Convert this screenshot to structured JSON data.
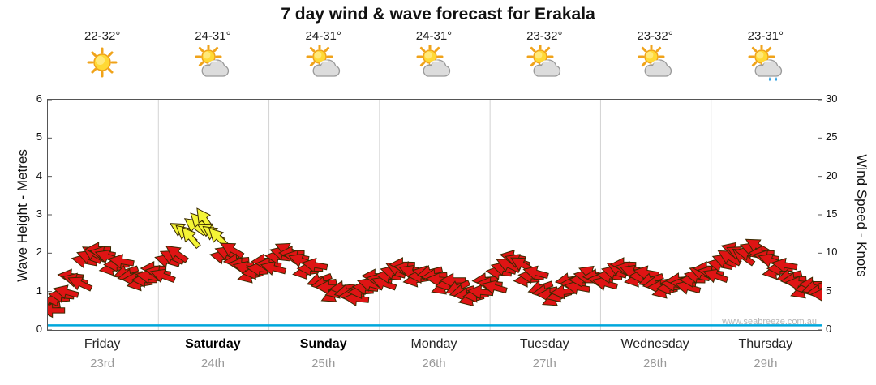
{
  "title": "7 day wind & wave forecast for Erakala",
  "watermark": "www.seabreeze.com.au",
  "left_axis": {
    "label": "Wave Height - Metres",
    "ticks": [
      0,
      1,
      2,
      3,
      4,
      5,
      6
    ]
  },
  "right_axis": {
    "label": "Wind Speed - Knots",
    "ticks": [
      0,
      5,
      10,
      15,
      20,
      25,
      30
    ]
  },
  "days": [
    {
      "name": "Friday",
      "date": "23rd",
      "temp": "22-32°",
      "icon": "sunny",
      "bold": false
    },
    {
      "name": "Saturday",
      "date": "24th",
      "temp": "24-31°",
      "icon": "sun-cloud",
      "bold": true
    },
    {
      "name": "Sunday",
      "date": "25th",
      "temp": "24-31°",
      "icon": "sun-cloud",
      "bold": true
    },
    {
      "name": "Monday",
      "date": "26th",
      "temp": "24-31°",
      "icon": "sun-cloud",
      "bold": false
    },
    {
      "name": "Tuesday",
      "date": "27th",
      "temp": "23-32°",
      "icon": "sun-cloud",
      "bold": false
    },
    {
      "name": "Wednesday",
      "date": "28th",
      "temp": "23-32°",
      "icon": "sun-cloud",
      "bold": false
    },
    {
      "name": "Thursday",
      "date": "29th",
      "temp": "23-31°",
      "icon": "sun-cloud-showers",
      "bold": false
    }
  ],
  "chart_data": {
    "type": "wind-arrows",
    "x_unit": "hours-from-friday-00",
    "x_range": [
      0,
      168
    ],
    "wind_knots_range": [
      0,
      30
    ],
    "wave_metres_range": [
      0,
      6
    ],
    "grid": "vertical-day-boundaries",
    "grid_color": "#d2d2d2",
    "arrow_colors": {
      "r": "#df1414",
      "y": "#f4f436"
    },
    "arrow_outline": "#3a2a00",
    "wave_line": {
      "color": "#00a7dc",
      "points": [
        [
          0,
          0.12
        ],
        [
          168,
          0.12
        ]
      ]
    },
    "wind_point_format": [
      "t_hours",
      "knots",
      "direction_deg",
      "color(r|y)"
    ],
    "wind_points": [
      [
        0,
        3,
        170,
        "r"
      ],
      [
        3,
        4.5,
        185,
        "r"
      ],
      [
        6,
        6.5,
        195,
        "r"
      ],
      [
        9,
        9.5,
        200,
        "r"
      ],
      [
        12,
        10,
        190,
        "r"
      ],
      [
        15,
        8.5,
        180,
        "r"
      ],
      [
        18,
        7,
        170,
        "r"
      ],
      [
        21,
        6.5,
        180,
        "r"
      ],
      [
        24,
        7.5,
        190,
        "r"
      ],
      [
        27,
        9.5,
        205,
        "r"
      ],
      [
        30,
        12.5,
        220,
        "y"
      ],
      [
        33,
        14,
        225,
        "y"
      ],
      [
        36,
        12.5,
        215,
        "y"
      ],
      [
        39,
        10,
        200,
        "r"
      ],
      [
        42,
        8.5,
        185,
        "r"
      ],
      [
        45,
        7.5,
        175,
        "r"
      ],
      [
        48,
        8.5,
        185,
        "r"
      ],
      [
        51,
        10,
        195,
        "r"
      ],
      [
        54,
        9.5,
        190,
        "r"
      ],
      [
        57,
        8,
        180,
        "r"
      ],
      [
        60,
        6,
        170,
        "r"
      ],
      [
        63,
        5,
        165,
        "r"
      ],
      [
        66,
        4.5,
        175,
        "r"
      ],
      [
        69,
        5.5,
        185,
        "r"
      ],
      [
        72,
        6.5,
        190,
        "r"
      ],
      [
        75,
        7.5,
        195,
        "r"
      ],
      [
        78,
        8,
        190,
        "r"
      ],
      [
        81,
        7,
        180,
        "r"
      ],
      [
        84,
        7,
        175,
        "r"
      ],
      [
        87,
        6,
        170,
        "r"
      ],
      [
        90,
        5,
        165,
        "r"
      ],
      [
        93,
        4.5,
        175,
        "r"
      ],
      [
        96,
        6,
        185,
        "r"
      ],
      [
        99,
        8,
        195,
        "r"
      ],
      [
        102,
        9,
        200,
        "r"
      ],
      [
        105,
        7,
        185,
        "r"
      ],
      [
        108,
        5,
        170,
        "r"
      ],
      [
        111,
        4.5,
        165,
        "r"
      ],
      [
        114,
        6,
        180,
        "r"
      ],
      [
        117,
        7,
        190,
        "r"
      ],
      [
        120,
        6.5,
        185,
        "r"
      ],
      [
        123,
        7.5,
        195,
        "r"
      ],
      [
        126,
        8,
        190,
        "r"
      ],
      [
        129,
        7,
        180,
        "r"
      ],
      [
        132,
        6,
        170,
        "r"
      ],
      [
        135,
        5.5,
        175,
        "r"
      ],
      [
        138,
        6,
        185,
        "r"
      ],
      [
        141,
        7,
        190,
        "r"
      ],
      [
        144,
        7.5,
        190,
        "r"
      ],
      [
        147,
        9,
        200,
        "r"
      ],
      [
        150,
        10,
        205,
        "r"
      ],
      [
        153,
        10.5,
        200,
        "r"
      ],
      [
        156,
        9.5,
        190,
        "r"
      ],
      [
        159,
        8,
        180,
        "r"
      ],
      [
        162,
        6.5,
        175,
        "r"
      ],
      [
        165,
        5.5,
        170,
        "r"
      ],
      [
        167.5,
        5,
        172,
        "r"
      ]
    ]
  }
}
